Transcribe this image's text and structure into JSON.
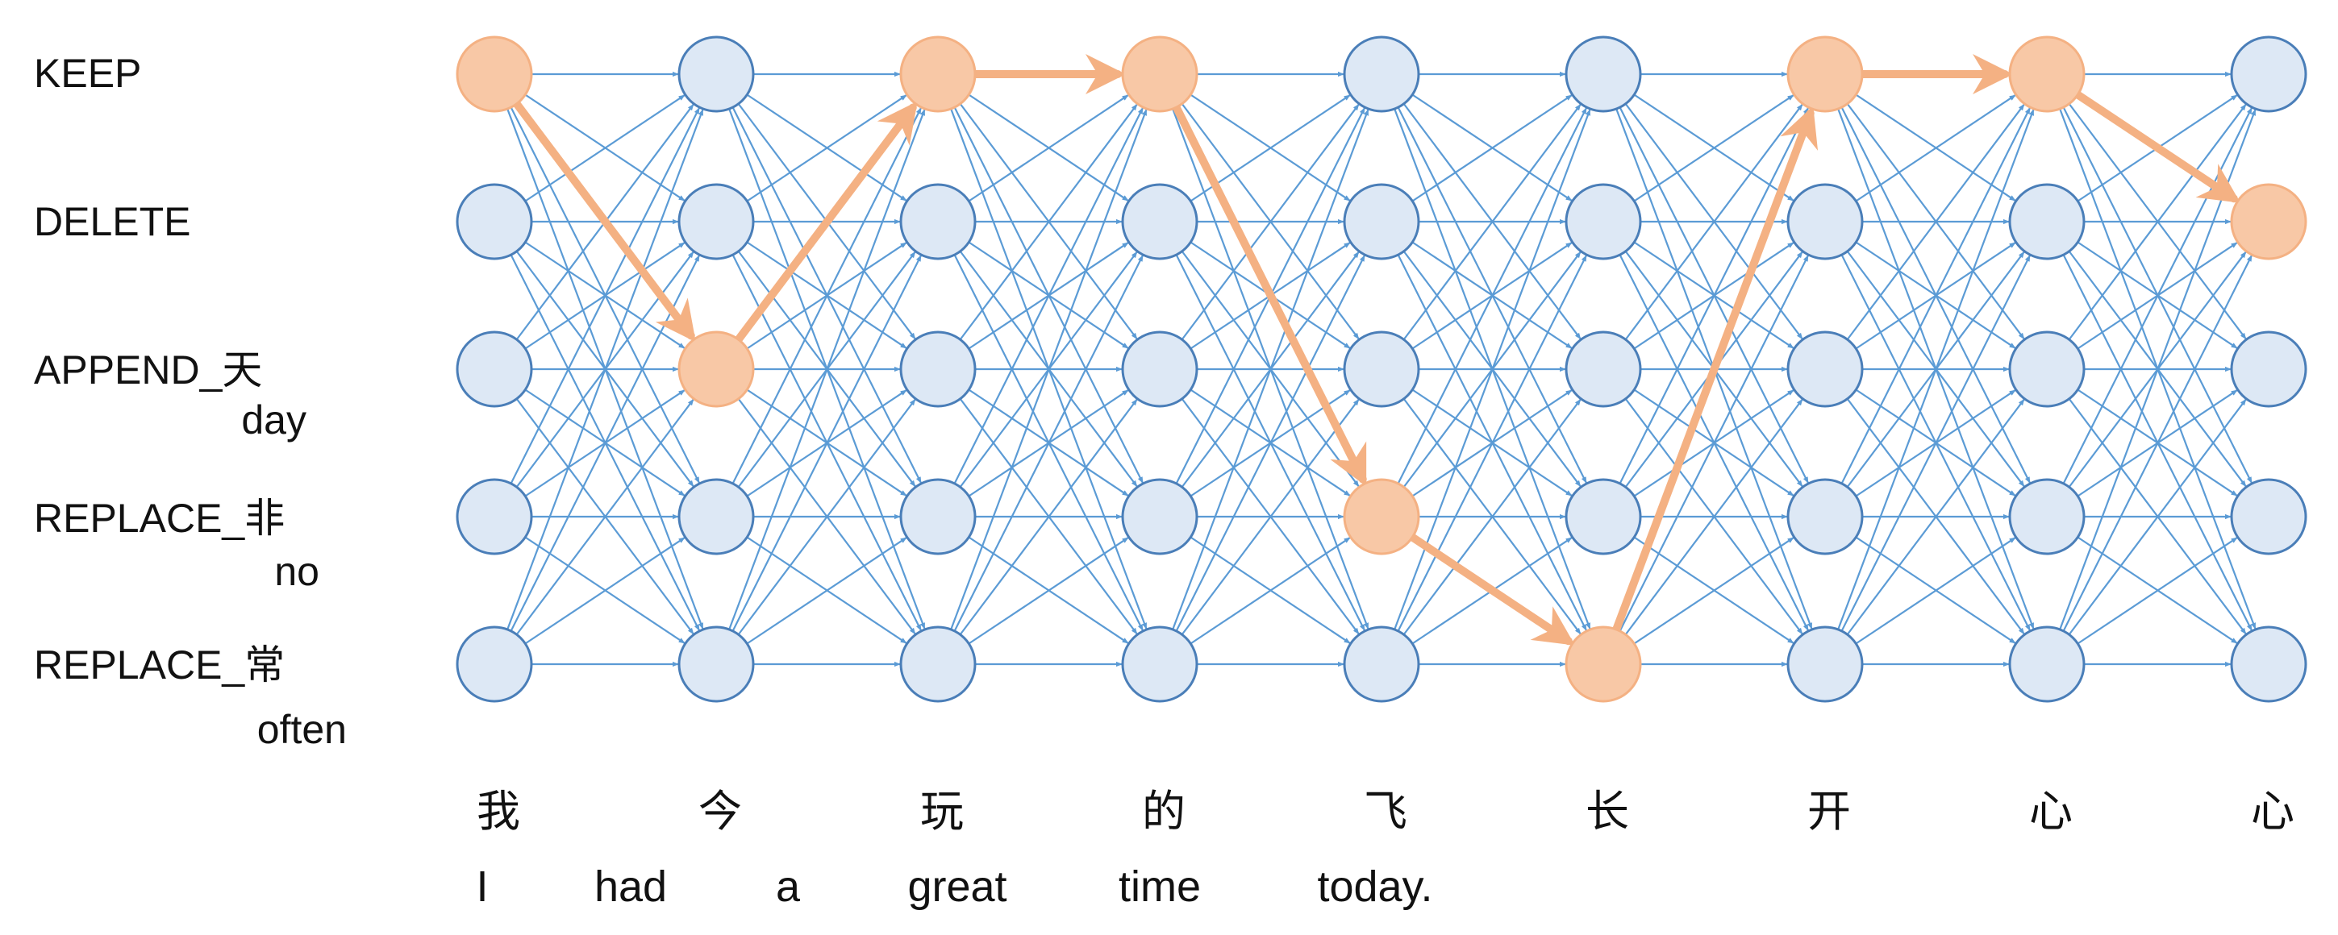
{
  "rows": [
    {
      "label": "KEEP",
      "translation": ""
    },
    {
      "label": "DELETE",
      "translation": ""
    },
    {
      "label": "APPEND_天",
      "translation": "day"
    },
    {
      "label": "REPLACE_非",
      "translation": "no"
    },
    {
      "label": "REPLACE_常",
      "translation": "often"
    }
  ],
  "source_tokens": [
    "我",
    "今",
    "玩",
    "的",
    "飞",
    "长",
    "开",
    "心",
    "心"
  ],
  "target_words": [
    "I",
    "had",
    "a",
    "great",
    "time",
    "today."
  ],
  "selected_path": [
    0,
    2,
    0,
    0,
    3,
    4,
    0,
    0,
    1
  ],
  "colors": {
    "edge": "#5b9bd5",
    "node_fill": "#dde8f5",
    "node_stroke": "#4a7eb8",
    "active_fill": "#f8c8a6",
    "active_stroke": "#f4b183",
    "path": "#f4b183"
  }
}
